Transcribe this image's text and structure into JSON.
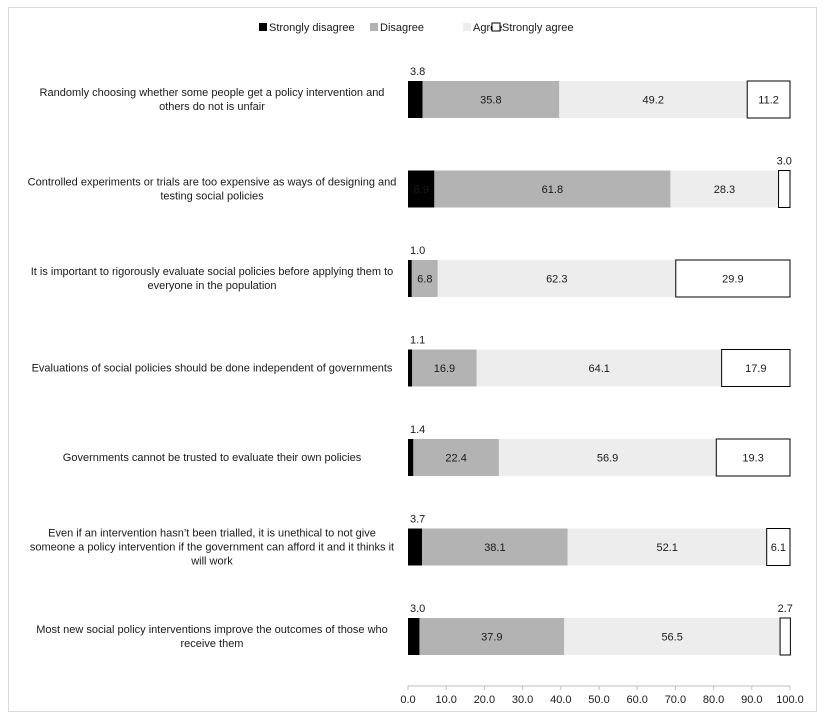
{
  "chart_data": {
    "type": "bar",
    "orientation": "horizontal",
    "stacked": true,
    "title": "",
    "xlabel": "",
    "ylabel": "",
    "xlim": [
      0,
      100
    ],
    "xticks": [
      "0.0",
      "10.0",
      "20.0",
      "30.0",
      "40.0",
      "50.0",
      "60.0",
      "70.0",
      "80.0",
      "90.0",
      "100.0"
    ],
    "grid": false,
    "legend_position": "top",
    "categories": [
      [
        "Randomly choosing whether some people get a policy intervention and",
        "others do not is unfair"
      ],
      [
        "Controlled experiments or trials are too expensive as ways of designing and",
        "testing social policies"
      ],
      [
        "It is important to rigorously evaluate social policies before applying them to",
        "everyone in the population"
      ],
      [
        "Evaluations of social policies should be done independent of governments"
      ],
      [
        "Governments cannot be trusted to evaluate their own policies"
      ],
      [
        "Even if an intervention hasn’t been trialled, it is unethical to not give",
        "someone a policy intervention if the government can afford it and it thinks it",
        "will work"
      ],
      [
        "Most new social policy interventions improve the outcomes of those who",
        "receive them"
      ]
    ],
    "series": [
      {
        "name": "Strongly disagree",
        "color": "#000000",
        "values": [
          3.8,
          6.9,
          1.0,
          1.1,
          1.4,
          3.7,
          3.0
        ]
      },
      {
        "name": "Disagree",
        "color": "#b3b3b3",
        "values": [
          35.8,
          61.8,
          6.8,
          16.9,
          22.4,
          38.1,
          37.9
        ]
      },
      {
        "name": "Agree",
        "color": "#ededed",
        "values": [
          49.2,
          28.3,
          62.3,
          64.1,
          56.9,
          52.1,
          56.5
        ]
      },
      {
        "name": "Strongly agree",
        "color": "#ffffff",
        "values": [
          11.2,
          3.0,
          29.9,
          17.9,
          19.3,
          6.1,
          2.7
        ]
      }
    ]
  }
}
